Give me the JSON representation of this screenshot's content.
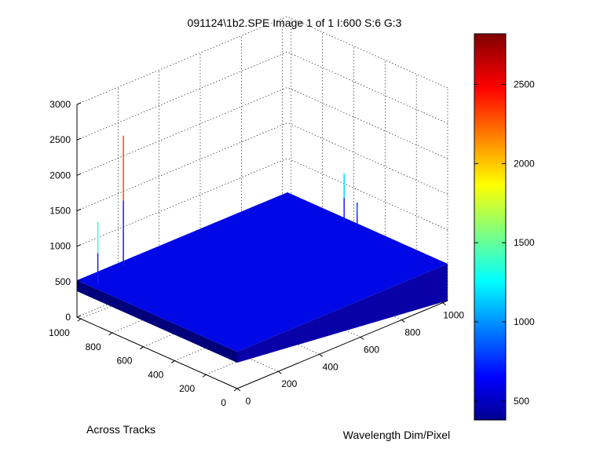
{
  "chart_data": {
    "type": "surface",
    "title": "091124\\1b2.SPE  Image 1 of 1  I:600  S:6  G:3",
    "xlabel": "Wavelength Dim/Pixel",
    "ylabel": "Across Tracks",
    "zlabel": "",
    "xlim": [
      0,
      1024
    ],
    "ylim": [
      0,
      1024
    ],
    "zlim": [
      0,
      3000
    ],
    "x_ticks": [
      "0",
      "200",
      "400",
      "600",
      "800",
      "1000"
    ],
    "y_ticks": [
      "0",
      "200",
      "400",
      "600",
      "800",
      "1000"
    ],
    "z_ticks": [
      "0",
      "500",
      "1000",
      "1500",
      "2000",
      "2500",
      "3000"
    ],
    "grid": true,
    "surface_baseline": 520,
    "spikes": [
      {
        "x": 30,
        "y": 930,
        "value": 1400
      },
      {
        "x": 200,
        "y": 990,
        "value": 2350
      },
      {
        "x": 1000,
        "y": 630,
        "value": 1200
      },
      {
        "x": 1010,
        "y": 560,
        "value": 850
      }
    ],
    "colorbar": {
      "range": [
        380,
        2820
      ],
      "ticks": [
        "500",
        "1000",
        "1500",
        "2000",
        "2500"
      ],
      "colormap": "jet"
    }
  }
}
